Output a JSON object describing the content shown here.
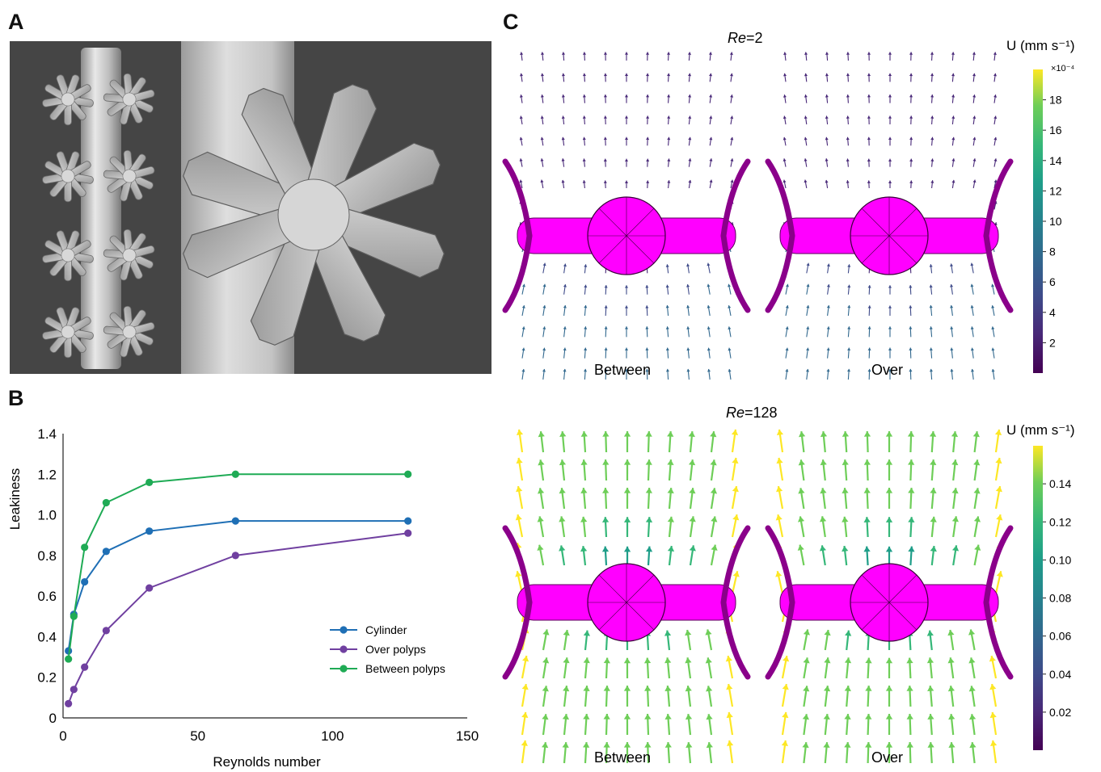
{
  "panels": {
    "a": "A",
    "b": "B",
    "c": "C"
  },
  "chart_data": {
    "type": "line",
    "xlabel": "Reynolds number",
    "ylabel": "Leakiness",
    "xlim": [
      0,
      150
    ],
    "ylim": [
      0,
      1.4
    ],
    "x_ticks": [
      "0",
      "50",
      "100",
      "150"
    ],
    "y_ticks": [
      "0",
      "0.2",
      "0.4",
      "0.6",
      "0.8",
      "1.0",
      "1.2",
      "1.4"
    ],
    "x": [
      2,
      4,
      8,
      16,
      32,
      64,
      128
    ],
    "series": [
      {
        "name": "Cylinder",
        "color": "#1f6fb5",
        "values": [
          0.33,
          0.51,
          0.67,
          0.82,
          0.92,
          0.97,
          0.97
        ]
      },
      {
        "name": "Over polyps",
        "color": "#7040a0",
        "values": [
          0.07,
          0.14,
          0.25,
          0.43,
          0.64,
          0.8,
          0.91
        ]
      },
      {
        "name": "Between polyps",
        "color": "#1fab55",
        "values": [
          0.29,
          0.5,
          0.84,
          1.06,
          1.16,
          1.2,
          1.2
        ]
      }
    ],
    "legend": "bottom-right",
    "grid": false
  },
  "panelC": {
    "top": {
      "re_label": "Re",
      "re_value": "=2",
      "colorbar_label": "U (mm s⁻¹)",
      "colorbar_exponent": "×10⁻⁴",
      "colorbar_ticks": [
        "18",
        "16",
        "14",
        "12",
        "10",
        "8",
        "6",
        "4",
        "2"
      ],
      "left_label": "Between",
      "right_label": "Over"
    },
    "bottom": {
      "re_label": "Re",
      "re_value": "=128",
      "colorbar_label": "U (mm s⁻¹)",
      "colorbar_ticks": [
        "0.14",
        "0.12",
        "0.10",
        "0.08",
        "0.06",
        "0.04",
        "0.02"
      ],
      "left_label": "Between",
      "right_label": "Over"
    },
    "colors": {
      "polyp": "#ff00ff",
      "viridis_low": "#440154",
      "viridis_high": "#fde725"
    }
  }
}
